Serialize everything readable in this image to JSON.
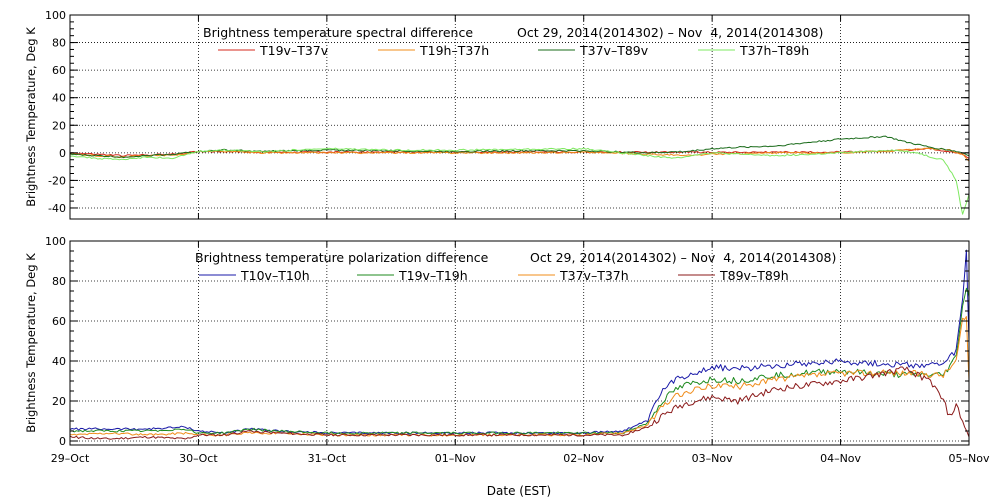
{
  "chart_data": [
    {
      "type": "line",
      "id": "spectral",
      "title_left": "Brightness temperature spectral difference",
      "title_right": "Oct 29, 2014(2014302) – Nov  4, 2014(2014308)",
      "ylabel": "Brightness Temperature, Deg K",
      "ylim": [
        -48,
        100
      ],
      "yticks": [
        -40,
        -20,
        0,
        20,
        40,
        60,
        80,
        100
      ],
      "xlim": [
        0,
        7
      ],
      "grid": true,
      "legend_position": "top",
      "series": [
        {
          "name": "T19v–T37v",
          "color": "#d42a1e",
          "x": [
            0,
            0.2,
            0.4,
            0.6,
            0.8,
            1.0,
            1.2,
            1.5,
            2.0,
            2.5,
            3.0,
            3.5,
            4.0,
            4.5,
            5.0,
            5.5,
            6.0,
            6.3,
            6.5,
            6.7,
            6.85,
            6.95,
            7.0
          ],
          "y": [
            0,
            -1,
            -2,
            -1.5,
            -1,
            1,
            1,
            0.5,
            0.5,
            0.5,
            0.5,
            0.5,
            0.5,
            0.5,
            0.5,
            0.5,
            0.5,
            1,
            2,
            3,
            1,
            -1,
            -4
          ]
        },
        {
          "name": "T19h–T37h",
          "color": "#f08c1a",
          "x": [
            0,
            0.2,
            0.4,
            0.6,
            0.8,
            1.0,
            1.2,
            1.5,
            2.0,
            2.5,
            3.0,
            3.5,
            4.0,
            4.5,
            4.8,
            5.0,
            5.5,
            6.0,
            6.3,
            6.5,
            6.7,
            6.85,
            6.95,
            7.0
          ],
          "y": [
            -1,
            -2,
            -3,
            -2,
            -2,
            1,
            1,
            0,
            0,
            0,
            0,
            0,
            0.5,
            -1,
            -2,
            -1,
            0,
            0,
            1,
            2,
            3,
            2,
            -1,
            -6
          ]
        },
        {
          "name": "T37v–T89v",
          "color": "#1a6b1a",
          "x": [
            0,
            0.2,
            0.4,
            0.6,
            0.8,
            1.0,
            1.2,
            1.5,
            2.0,
            2.5,
            3.0,
            3.5,
            4.0,
            4.5,
            4.8,
            5.0,
            5.2,
            5.5,
            5.8,
            6.0,
            6.2,
            6.35,
            6.5,
            6.7,
            6.85,
            6.95,
            7.0
          ],
          "y": [
            -1,
            -2,
            -3,
            -2,
            -1,
            1,
            2,
            1,
            2,
            1.5,
            1,
            1.5,
            1.5,
            0,
            1,
            3,
            4,
            5,
            8,
            10,
            11,
            12,
            8,
            4,
            2,
            0,
            -2
          ]
        },
        {
          "name": "T37h–T89h",
          "color": "#7ee860",
          "x": [
            0,
            0.2,
            0.4,
            0.6,
            0.8,
            1.0,
            1.2,
            1.5,
            2.0,
            2.5,
            3.0,
            3.5,
            4.0,
            4.5,
            4.7,
            4.9,
            5.0,
            5.2,
            5.5,
            5.8,
            6.0,
            6.2,
            6.4,
            6.6,
            6.7,
            6.8,
            6.9,
            6.95,
            7.0
          ],
          "y": [
            -2,
            -4,
            -5,
            -3,
            -4,
            1,
            2,
            1,
            3,
            2,
            2,
            2.5,
            3,
            -2,
            -4,
            -1,
            0,
            -1,
            -2,
            -1,
            0,
            1,
            2,
            0,
            -3,
            -5,
            -20,
            -45,
            -30
          ]
        }
      ]
    },
    {
      "type": "line",
      "id": "polarization",
      "title_left": "Brightness temperature polarization difference",
      "title_right": "Oct 29, 2014(2014302) – Nov  4, 2014(2014308)",
      "ylabel": "Brightness Temperature, Deg K",
      "xlabel": "Date (EST)",
      "ylim": [
        -2,
        100
      ],
      "yticks": [
        0,
        20,
        40,
        60,
        80,
        100
      ],
      "xlim": [
        0,
        7
      ],
      "xticks": [
        "29–Oct",
        "30–Oct",
        "31–Oct",
        "01–Nov",
        "02–Nov",
        "03–Nov",
        "04–Nov",
        "05–Nov"
      ],
      "grid": true,
      "legend_position": "top",
      "series": [
        {
          "name": "T10v–T10h",
          "color": "#1a1aa8",
          "x": [
            0,
            0.3,
            0.6,
            0.9,
            1.0,
            1.2,
            1.4,
            1.6,
            2.0,
            2.5,
            3.0,
            3.5,
            4.0,
            4.3,
            4.5,
            4.6,
            4.7,
            4.8,
            5.0,
            5.2,
            5.5,
            6.0,
            6.2,
            6.5,
            6.8,
            6.9,
            6.95,
            6.98,
            7.0
          ],
          "y": [
            6,
            6,
            6,
            7,
            5,
            4,
            6,
            5,
            4,
            4,
            4,
            4,
            4,
            5,
            10,
            24,
            30,
            33,
            37,
            36,
            38,
            40,
            39,
            38,
            38,
            45,
            70,
            95,
            50
          ]
        },
        {
          "name": "T19v–T19h",
          "color": "#1e8a1e",
          "x": [
            0,
            0.3,
            0.6,
            0.9,
            1.0,
            1.2,
            1.4,
            1.6,
            2.0,
            2.5,
            3.0,
            3.5,
            4.0,
            4.3,
            4.5,
            4.6,
            4.7,
            4.8,
            5.0,
            5.2,
            5.5,
            6.0,
            6.2,
            6.5,
            6.8,
            6.9,
            6.95,
            6.98,
            7.0
          ],
          "y": [
            5,
            5,
            5,
            6,
            4,
            4,
            6,
            5,
            4,
            4,
            4,
            4,
            4,
            4,
            9,
            19,
            25,
            28,
            31,
            30,
            33,
            35,
            34,
            33,
            33,
            42,
            68,
            76,
            72
          ]
        },
        {
          "name": "T37v–T37h",
          "color": "#f08c1a",
          "x": [
            0,
            0.3,
            0.6,
            0.9,
            1.0,
            1.2,
            1.4,
            1.6,
            2.0,
            2.5,
            3.0,
            3.5,
            4.0,
            4.3,
            4.5,
            4.6,
            4.7,
            4.8,
            5.0,
            5.2,
            5.5,
            6.0,
            6.2,
            6.5,
            6.8,
            6.9,
            6.95,
            6.98,
            7.0
          ],
          "y": [
            3,
            4,
            3,
            4,
            3,
            3,
            4,
            4,
            3,
            3,
            3,
            3,
            3,
            4,
            8,
            16,
            22,
            24,
            28,
            27,
            31,
            34,
            34,
            34,
            33,
            40,
            60,
            62,
            30
          ]
        },
        {
          "name": "T89v–T89h",
          "color": "#8b1a1a",
          "x": [
            0,
            0.3,
            0.6,
            0.9,
            1.0,
            1.2,
            1.4,
            1.6,
            2.0,
            2.5,
            3.0,
            3.5,
            4.0,
            4.3,
            4.5,
            4.6,
            4.7,
            4.8,
            5.0,
            5.2,
            5.5,
            6.0,
            6.2,
            6.5,
            6.7,
            6.8,
            6.85,
            6.9,
            6.95,
            7.0
          ],
          "y": [
            2,
            1,
            2,
            1,
            3,
            3,
            5,
            4,
            3,
            3,
            3,
            3,
            3,
            3,
            7,
            12,
            16,
            19,
            22,
            20,
            26,
            30,
            32,
            36,
            30,
            20,
            12,
            18,
            10,
            2
          ]
        }
      ]
    }
  ]
}
